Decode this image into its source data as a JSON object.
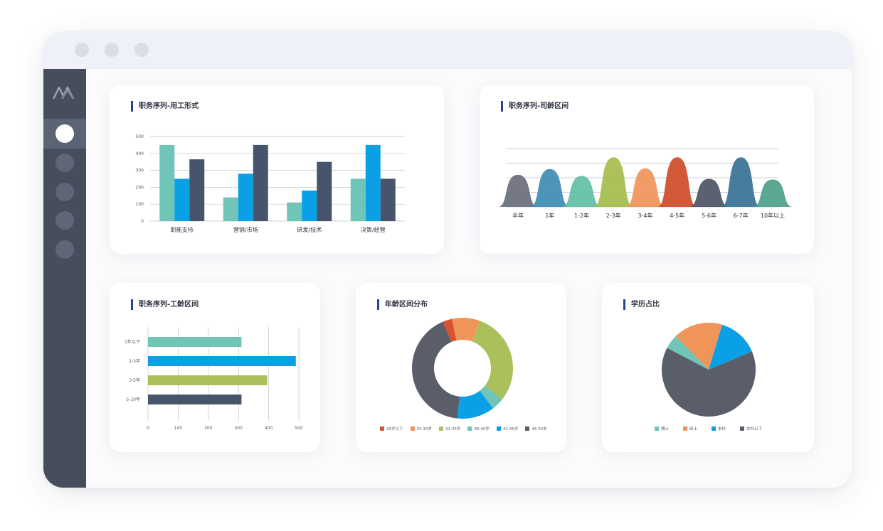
{
  "colors": {
    "teal": "#6ec5b8",
    "blue": "#0aa0e6",
    "slate": "#46556a",
    "olive": "#aac05a",
    "orange": "#f0955a",
    "red": "#d8532f",
    "dark": "#5a5e6b",
    "sidebar": "#464e5e",
    "accent": "#23468c"
  },
  "sidebar": {
    "items": [
      {
        "icon": "circle-icon",
        "active": true
      },
      {
        "icon": "circle-icon",
        "active": false
      },
      {
        "icon": "circle-icon",
        "active": false
      },
      {
        "icon": "circle-icon",
        "active": false
      },
      {
        "icon": "circle-icon",
        "active": false
      }
    ]
  },
  "cards": {
    "employment": {
      "title": "职务序列-用工形式"
    },
    "tenure": {
      "title": "职务序列-司龄区间"
    },
    "seniority": {
      "title": "职务序列-工龄区间"
    },
    "age": {
      "title": "年龄区间分布"
    },
    "education": {
      "title": "学历占比"
    }
  },
  "chart_data": [
    {
      "type": "bar",
      "categories": [
        "职能支持",
        "营销/市场",
        "研发/技术",
        "决策/经营"
      ],
      "series": [
        {
          "values": [
            450,
            140,
            110,
            250
          ]
        },
        {
          "values": [
            250,
            280,
            180,
            450
          ]
        },
        {
          "values": [
            365,
            450,
            350,
            250
          ]
        }
      ],
      "yticks": [
        "0",
        "100",
        "200",
        "300",
        "400",
        "500"
      ],
      "ylim": [
        0,
        500
      ],
      "grid": true
    },
    {
      "type": "area",
      "categories": [
        "半年",
        "1年",
        "1-2年",
        "2-3年",
        "3-4年",
        "4-5年",
        "5-6年",
        "6-7年",
        "10年以上"
      ],
      "values": [
        55,
        65,
        53,
        85,
        66,
        85,
        48,
        85,
        47
      ],
      "ylim": [
        0,
        100
      ],
      "grid": true
    },
    {
      "type": "bar",
      "orientation": "horizontal",
      "categories": [
        "1年以下",
        "1-3年",
        "3-5年",
        "5-10年"
      ],
      "values": [
        310,
        490,
        395,
        310
      ],
      "xticks": [
        "0",
        "100",
        "200",
        "300",
        "400",
        "500"
      ],
      "xlim": [
        0,
        500
      ],
      "grid": true
    },
    {
      "type": "pie",
      "donut": true,
      "labels": [
        "25岁以下",
        "25-30岁",
        "31-35岁",
        "36-40岁",
        "41-45岁",
        "46-50岁"
      ],
      "values": [
        3,
        9,
        30,
        4,
        12,
        42
      ]
    },
    {
      "type": "pie",
      "labels": [
        "博士",
        "硕士",
        "本科",
        "本科以下"
      ],
      "values": [
        5,
        17,
        14,
        64
      ]
    }
  ]
}
